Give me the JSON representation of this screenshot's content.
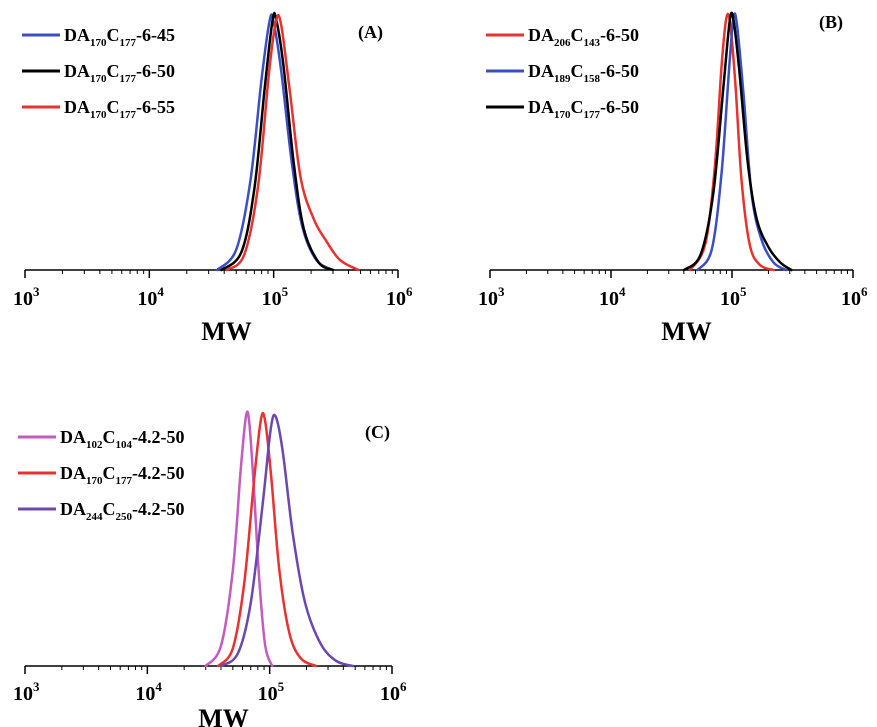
{
  "chart_data": [
    {
      "type": "line",
      "panel_label": "(A)",
      "xlabel": "MW",
      "x_scale": "log",
      "xlim": [
        1000,
        1000000
      ],
      "xticks": [
        {
          "base": "10",
          "exp": "3"
        },
        {
          "base": "10",
          "exp": "4"
        },
        {
          "base": "10",
          "exp": "5"
        },
        {
          "base": "10",
          "exp": "6"
        }
      ],
      "legend_position": "top-left",
      "series": [
        {
          "name": "DA170C177-6-45",
          "label_parts": [
            {
              "t": "DA"
            },
            {
              "t": "170",
              "sub": true
            },
            {
              "t": "C"
            },
            {
              "t": "177",
              "sub": true
            },
            {
              "t": "-6-45"
            }
          ],
          "color": "#3b4fc4",
          "x": [
            35000,
            50000,
            65000,
            80000,
            93000,
            100000,
            115000,
            140000,
            170000,
            220000,
            300000
          ],
          "y": [
            0,
            0.08,
            0.35,
            0.75,
            0.98,
            0.97,
            0.78,
            0.42,
            0.17,
            0.04,
            0
          ]
        },
        {
          "name": "DA170C177-6-50",
          "label_parts": [
            {
              "t": "DA"
            },
            {
              "t": "170",
              "sub": true
            },
            {
              "t": "C"
            },
            {
              "t": "177",
              "sub": true
            },
            {
              "t": "-6-50"
            }
          ],
          "color": "#000000",
          "x": [
            38000,
            55000,
            70000,
            85000,
            98000,
            105000,
            120000,
            145000,
            175000,
            230000,
            300000
          ],
          "y": [
            0,
            0.07,
            0.32,
            0.72,
            0.98,
            0.98,
            0.8,
            0.42,
            0.16,
            0.03,
            0
          ]
        },
        {
          "name": "DA170C177-6-55",
          "label_parts": [
            {
              "t": "DA"
            },
            {
              "t": "170",
              "sub": true
            },
            {
              "t": "C"
            },
            {
              "t": "177",
              "sub": true
            },
            {
              "t": "-6-55"
            }
          ],
          "color": "#e8322f",
          "x": [
            42000,
            58000,
            75000,
            92000,
            105000,
            115000,
            135000,
            165000,
            210000,
            260000,
            340000,
            480000
          ],
          "y": [
            0,
            0.06,
            0.33,
            0.78,
            0.98,
            0.96,
            0.7,
            0.36,
            0.2,
            0.12,
            0.04,
            0
          ]
        }
      ]
    },
    {
      "type": "line",
      "panel_label": "(B)",
      "xlabel": "MW",
      "x_scale": "log",
      "xlim": [
        1000,
        1000000
      ],
      "xticks": [
        {
          "base": "10",
          "exp": "3"
        },
        {
          "base": "10",
          "exp": "4"
        },
        {
          "base": "10",
          "exp": "5"
        },
        {
          "base": "10",
          "exp": "6"
        }
      ],
      "legend_position": "top-left",
      "series": [
        {
          "name": "DA206C143-6-50",
          "label_parts": [
            {
              "t": "DA"
            },
            {
              "t": "206",
              "sub": true
            },
            {
              "t": "C"
            },
            {
              "t": "143",
              "sub": true
            },
            {
              "t": "-6-50"
            }
          ],
          "color": "#e8322f",
          "x": [
            45000,
            60000,
            72000,
            82000,
            90000,
            97000,
            107000,
            120000,
            140000,
            170000,
            220000
          ],
          "y": [
            0,
            0.1,
            0.4,
            0.8,
            0.99,
            0.96,
            0.72,
            0.35,
            0.1,
            0.02,
            0
          ]
        },
        {
          "name": "DA189C158-6-50",
          "label_parts": [
            {
              "t": "DA"
            },
            {
              "t": "189",
              "sub": true
            },
            {
              "t": "C"
            },
            {
              "t": "158",
              "sub": true
            },
            {
              "t": "-6-50"
            }
          ],
          "color": "#3b4fc4",
          "x": [
            52000,
            68000,
            82000,
            95000,
            103000,
            110000,
            125000,
            145000,
            175000,
            220000,
            280000
          ],
          "y": [
            0,
            0.08,
            0.38,
            0.8,
            0.99,
            0.96,
            0.68,
            0.3,
            0.12,
            0.03,
            0
          ]
        },
        {
          "name": "DA170C177-6-50",
          "label_parts": [
            {
              "t": "DA"
            },
            {
              "t": "170",
              "sub": true
            },
            {
              "t": "C"
            },
            {
              "t": "177",
              "sub": true
            },
            {
              "t": "-6-50"
            }
          ],
          "color": "#000000",
          "x": [
            40000,
            55000,
            70000,
            85000,
            96000,
            103000,
            115000,
            135000,
            160000,
            200000,
            250000,
            310000
          ],
          "y": [
            0,
            0.06,
            0.3,
            0.72,
            0.98,
            0.98,
            0.78,
            0.42,
            0.2,
            0.09,
            0.03,
            0
          ]
        }
      ]
    },
    {
      "type": "line",
      "panel_label": "(C)",
      "xlabel": "MW",
      "x_scale": "log",
      "xlim": [
        1000,
        1000000
      ],
      "xticks": [
        {
          "base": "10",
          "exp": "3"
        },
        {
          "base": "10",
          "exp": "4"
        },
        {
          "base": "10",
          "exp": "5"
        },
        {
          "base": "10",
          "exp": "6"
        }
      ],
      "legend_position": "top-left",
      "series": [
        {
          "name": "DA102C104-4.2-50",
          "label_parts": [
            {
              "t": "DA"
            },
            {
              "t": "102",
              "sub": true
            },
            {
              "t": "C"
            },
            {
              "t": "104",
              "sub": true
            },
            {
              "t": "-4.2-50"
            }
          ],
          "color": "#c35bc0",
          "x": [
            30000,
            40000,
            50000,
            58000,
            64000,
            68000,
            74000,
            82000,
            92000,
            105000
          ],
          "y": [
            0,
            0.08,
            0.38,
            0.78,
            0.99,
            0.97,
            0.72,
            0.35,
            0.08,
            0
          ]
        },
        {
          "name": "DA170C177-4.2-50",
          "label_parts": [
            {
              "t": "DA"
            },
            {
              "t": "170",
              "sub": true
            },
            {
              "t": "C"
            },
            {
              "t": "177",
              "sub": true
            },
            {
              "t": "-4.2-50"
            }
          ],
          "color": "#e8322f",
          "x": [
            38000,
            50000,
            62000,
            75000,
            85000,
            92000,
            103000,
            120000,
            145000,
            180000,
            240000
          ],
          "y": [
            0,
            0.07,
            0.33,
            0.75,
            0.98,
            0.97,
            0.75,
            0.38,
            0.13,
            0.03,
            0
          ]
        },
        {
          "name": "DA244C250-4.2-50",
          "label_parts": [
            {
              "t": "DA"
            },
            {
              "t": "244",
              "sub": true
            },
            {
              "t": "C"
            },
            {
              "t": "250",
              "sub": true
            },
            {
              "t": "-4.2-50"
            }
          ],
          "color": "#6a48b0",
          "x": [
            40000,
            55000,
            70000,
            88000,
            102000,
            112000,
            128000,
            155000,
            195000,
            260000,
            350000,
            480000
          ],
          "y": [
            0,
            0.05,
            0.25,
            0.65,
            0.94,
            0.99,
            0.85,
            0.52,
            0.25,
            0.09,
            0.02,
            0
          ]
        }
      ]
    }
  ]
}
